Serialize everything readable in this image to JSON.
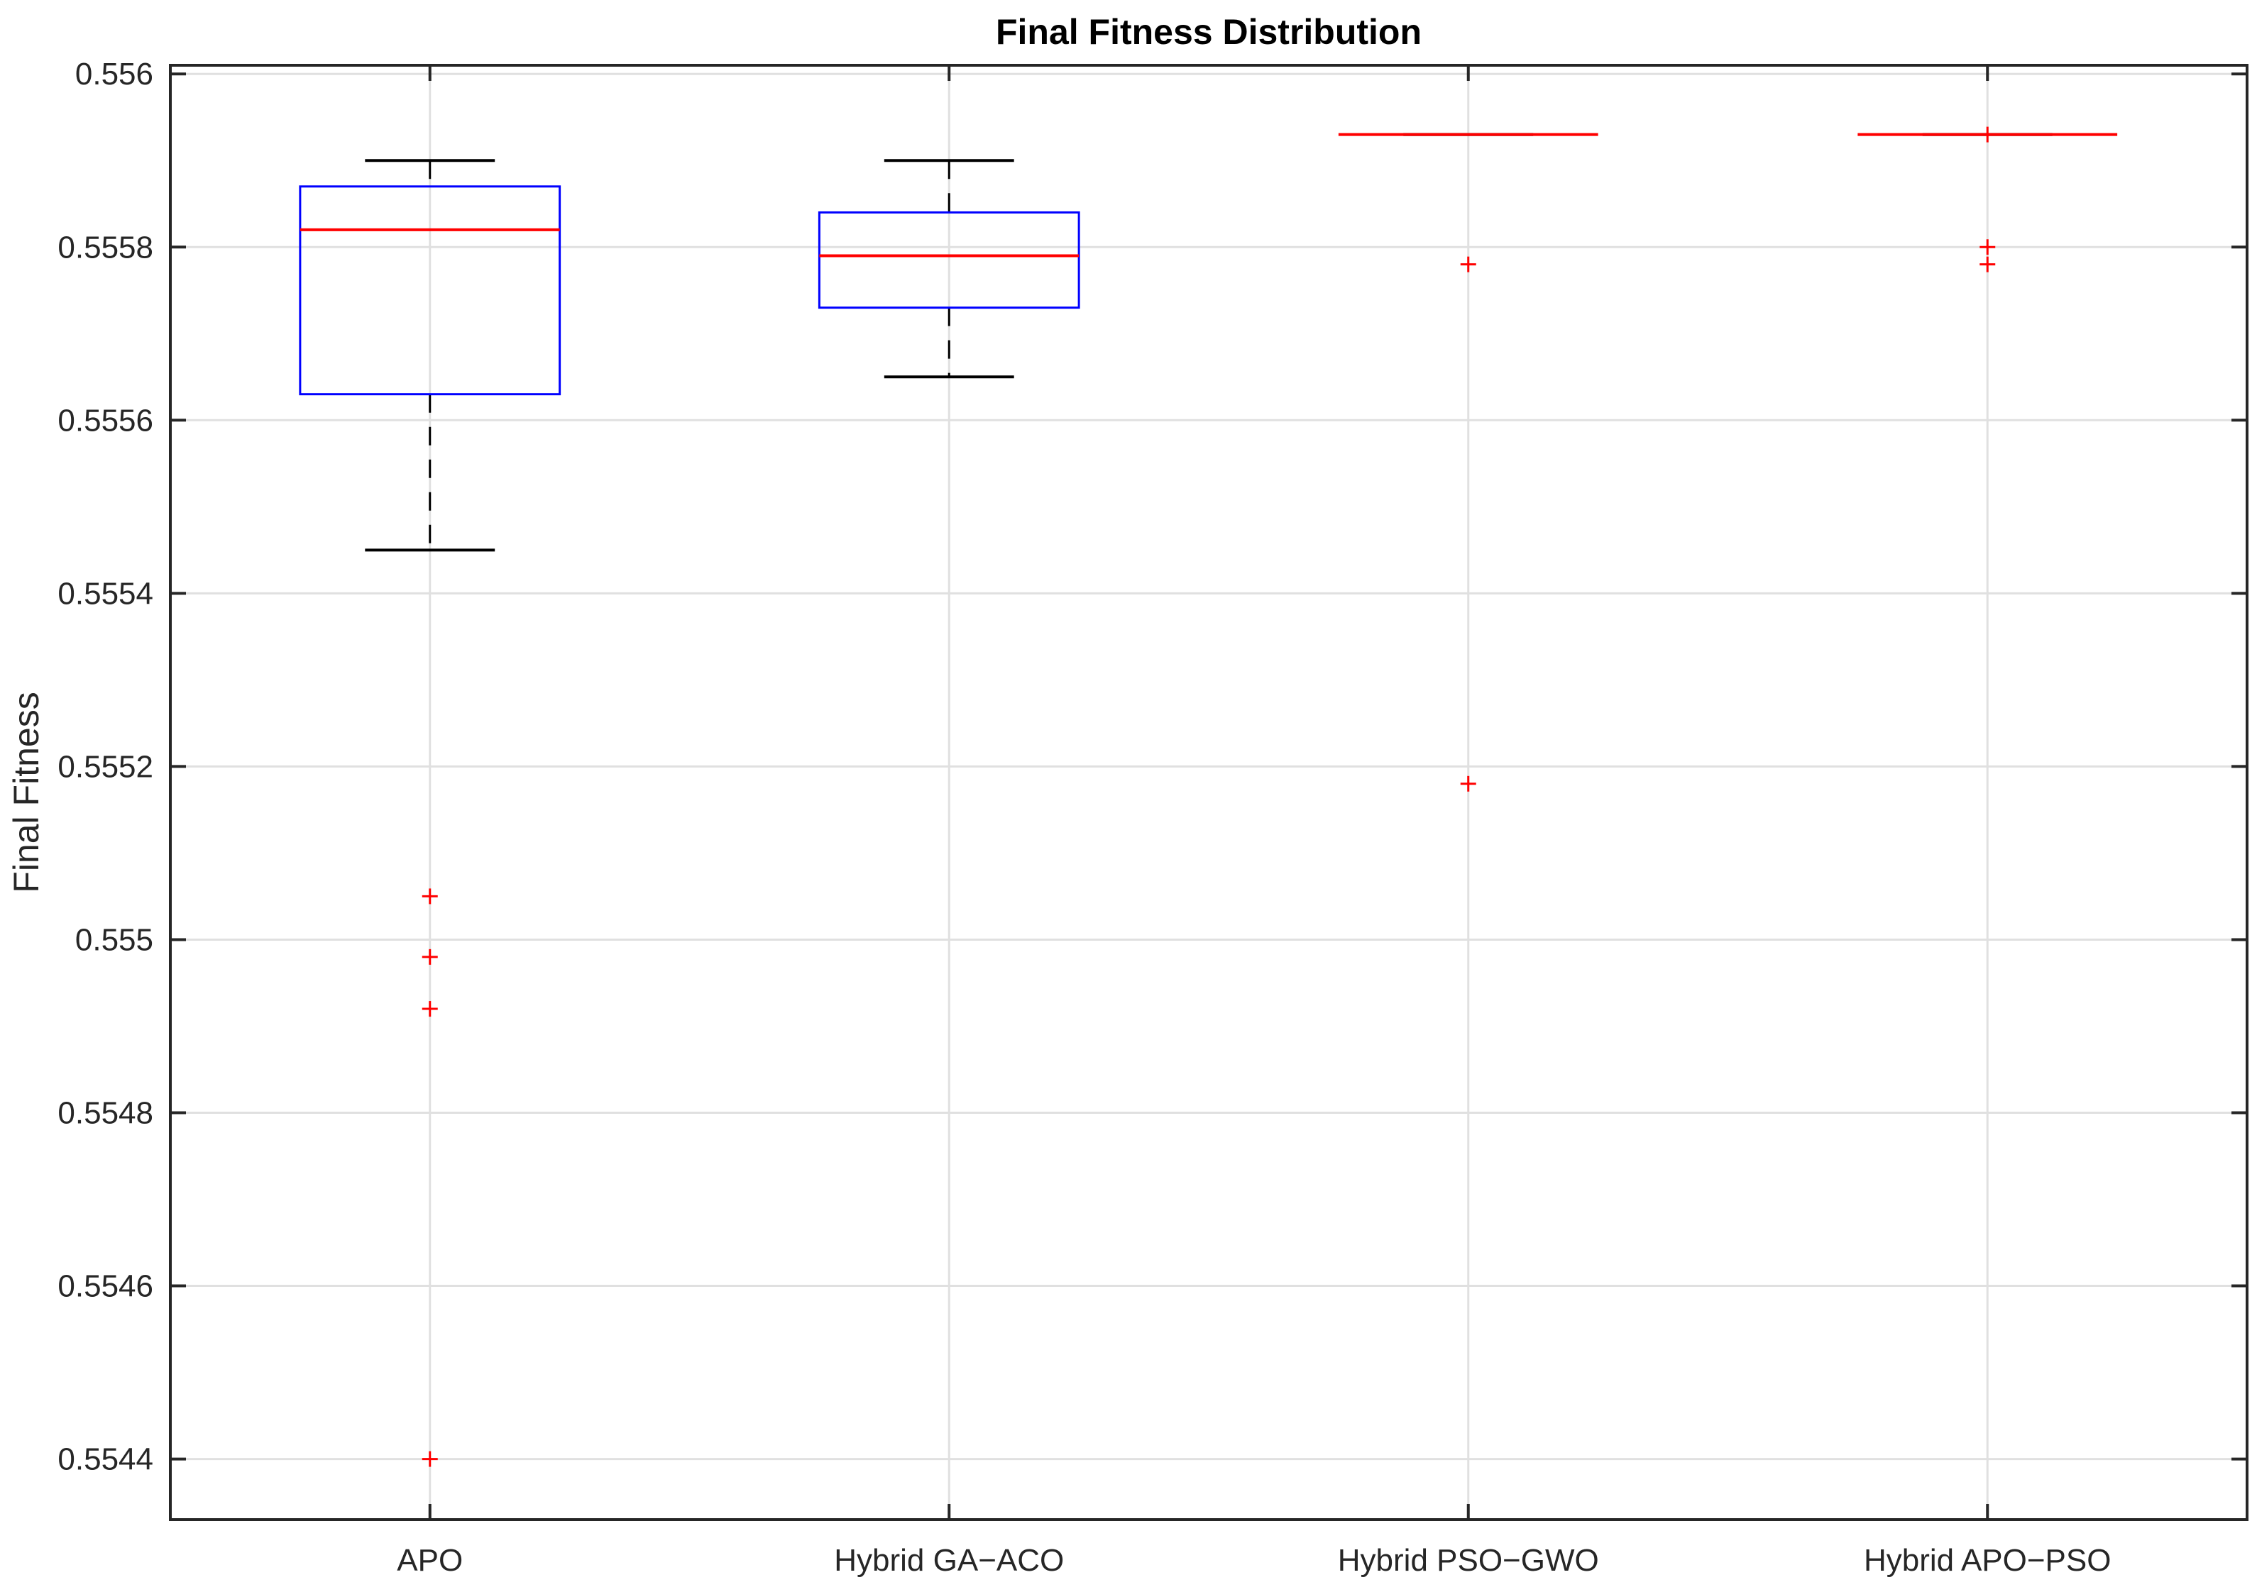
{
  "chart_data": {
    "type": "box",
    "title": "Final Fitness Distribution",
    "xlabel": "",
    "ylabel": "Final Fitness",
    "categories": [
      "APO",
      "Hybrid GA−ACO",
      "Hybrid PSO−GWO",
      "Hybrid APO−PSO"
    ],
    "ylim": [
      0.55433,
      0.55601
    ],
    "yticks": [
      0.5544,
      0.5546,
      0.5548,
      0.555,
      0.5552,
      0.5554,
      0.5556,
      0.5558,
      0.556
    ],
    "ytick_labels": [
      "0.5544",
      "0.5546",
      "0.5548",
      "0.555",
      "0.5552",
      "0.5554",
      "0.5556",
      "0.5558",
      "0.556"
    ],
    "grid": true,
    "boxes": [
      {
        "category": "APO",
        "whisker_low": 0.55545,
        "q1": 0.55563,
        "median": 0.55582,
        "q3": 0.55587,
        "whisker_high": 0.5559,
        "outliers": [
          0.55505,
          0.55498,
          0.55492,
          0.5544
        ]
      },
      {
        "category": "Hybrid GA−ACO",
        "whisker_low": 0.55565,
        "q1": 0.55573,
        "median": 0.55579,
        "q3": 0.55584,
        "whisker_high": 0.5559,
        "outliers": []
      },
      {
        "category": "Hybrid PSO−GWO",
        "whisker_low": 0.55593,
        "q1": 0.55593,
        "median": 0.55593,
        "q3": 0.55593,
        "whisker_high": 0.55593,
        "outliers": [
          0.55578,
          0.55518
        ]
      },
      {
        "category": "Hybrid APO−PSO",
        "whisker_low": 0.55593,
        "q1": 0.55593,
        "median": 0.55593,
        "q3": 0.55593,
        "whisker_high": 0.55593,
        "outliers": [
          0.55593,
          0.5558,
          0.55578
        ]
      }
    ],
    "colors": {
      "box": "#0000ff",
      "median": "#ff0000",
      "whisker": "#000000",
      "outlier": "#ff0000",
      "grid": "#e0e0e0",
      "axis": "#262626"
    }
  }
}
